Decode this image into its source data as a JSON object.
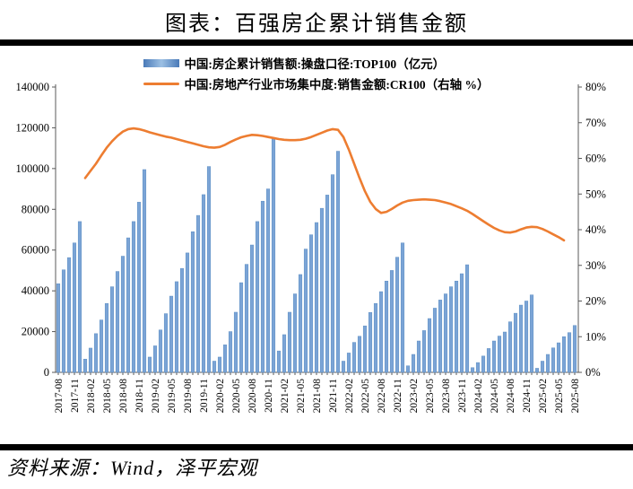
{
  "page": {
    "title": "图表：百强房企累计销售金额",
    "source_note": "资料来源：Wind，泽平宏观"
  },
  "legend": {
    "bar_label": "中国:房企累计销售额:操盘口径:TOP100（亿元）",
    "line_label": "中国:房地产行业市场集中度:销售金额:CR100（右轴 %）"
  },
  "colors": {
    "bar_fill": "#7BA4D6",
    "bar_edge": "#5E8FC4",
    "line": "#ED7D31",
    "axis": "#595959",
    "rule": "#000000"
  },
  "chart_data": {
    "type": "bar+line combo, monthly cumulative",
    "start_month": "2017-08",
    "end_month": "2025-08",
    "x_tick_labels": [
      "2017-08",
      "2017-11",
      "2018-02",
      "2018-05",
      "2018-08",
      "2018-11",
      "2019-02",
      "2019-05",
      "2019-08",
      "2019-11",
      "2020-02",
      "2020-05",
      "2020-08",
      "2020-11",
      "2021-02",
      "2021-05",
      "2021-08",
      "2021-11",
      "2022-02",
      "2022-05",
      "2022-08",
      "2022-11",
      "2023-02",
      "2023-05",
      "2023-08",
      "2023-11",
      "2024-02",
      "2024-05",
      "2024-08",
      "2024-11",
      "2025-02",
      "2025-05",
      "2025-08"
    ],
    "x_tick_every": 3,
    "left_axis": {
      "min": 0,
      "max": 140000,
      "step": 20000,
      "ticks": [
        "0",
        "20000",
        "40000",
        "60000",
        "80000",
        "100000",
        "120000",
        "140000"
      ]
    },
    "right_axis": {
      "min": 0,
      "max": 80,
      "step": 10,
      "suffix": "%",
      "ticks": [
        "0%",
        "10%",
        "20%",
        "30%",
        "40%",
        "50%",
        "60%",
        "70%",
        "80%"
      ]
    },
    "bar": {
      "name": "中国:房企累计销售额:操盘口径:TOP100（亿元）",
      "axis": "left",
      "values": [
        43500,
        50300,
        56300,
        63500,
        74000,
        6500,
        11900,
        19000,
        25700,
        33800,
        42000,
        49500,
        57000,
        66000,
        74000,
        83500,
        99500,
        7500,
        13000,
        20800,
        28800,
        37400,
        44500,
        51000,
        58600,
        69000,
        77000,
        87200,
        101000,
        5500,
        7500,
        13500,
        20000,
        29500,
        44000,
        53000,
        62500,
        74000,
        84000,
        90000,
        114500,
        10500,
        18500,
        29500,
        38500,
        48000,
        60500,
        67500,
        73500,
        80500,
        87000,
        97000,
        108500,
        5500,
        9500,
        14700,
        17700,
        22800,
        29400,
        33800,
        39600,
        44800,
        50000,
        56500,
        63500,
        3200,
        8800,
        15400,
        20500,
        26400,
        31500,
        35500,
        38500,
        42000,
        44800,
        48400,
        52800,
        2300,
        4800,
        8000,
        11700,
        15400,
        17800,
        19800,
        24800,
        29000,
        33000,
        35000,
        38000,
        2000,
        5500,
        8800,
        12000,
        14500,
        17500,
        19500,
        23000
      ]
    },
    "line": {
      "name": "中国:房地产行业市场集中度:销售金额:CR100（右轴 %）",
      "axis": "right",
      "start_index": 5,
      "start_month": "2018-01",
      "end_month": "2025-06",
      "values": [
        54.5,
        56.5,
        58.5,
        60.8,
        63.0,
        64.8,
        66.3,
        67.5,
        68.2,
        68.4,
        68.2,
        67.8,
        67.3,
        66.9,
        66.5,
        66.1,
        65.8,
        65.4,
        65.0,
        64.6,
        64.2,
        63.8,
        63.4,
        63.1,
        63.0,
        63.2,
        63.8,
        64.6,
        65.3,
        65.9,
        66.3,
        66.6,
        66.5,
        66.3,
        66.0,
        65.7,
        65.4,
        65.2,
        65.1,
        65.1,
        65.2,
        65.5,
        66.0,
        66.6,
        67.2,
        67.8,
        68.2,
        68.0,
        66.0,
        62.5,
        58.5,
        54.5,
        50.8,
        47.8,
        45.8,
        44.7,
        45.0,
        45.8,
        46.8,
        47.6,
        48.1,
        48.3,
        48.4,
        48.5,
        48.4,
        48.3,
        48.0,
        47.6,
        47.2,
        46.6,
        46.0,
        45.3,
        44.4,
        43.4,
        42.4,
        41.4,
        40.5,
        39.8,
        39.3,
        39.2,
        39.5,
        40.1,
        40.6,
        40.8,
        40.7,
        40.2,
        39.5,
        38.7,
        37.9,
        37.0
      ]
    }
  }
}
